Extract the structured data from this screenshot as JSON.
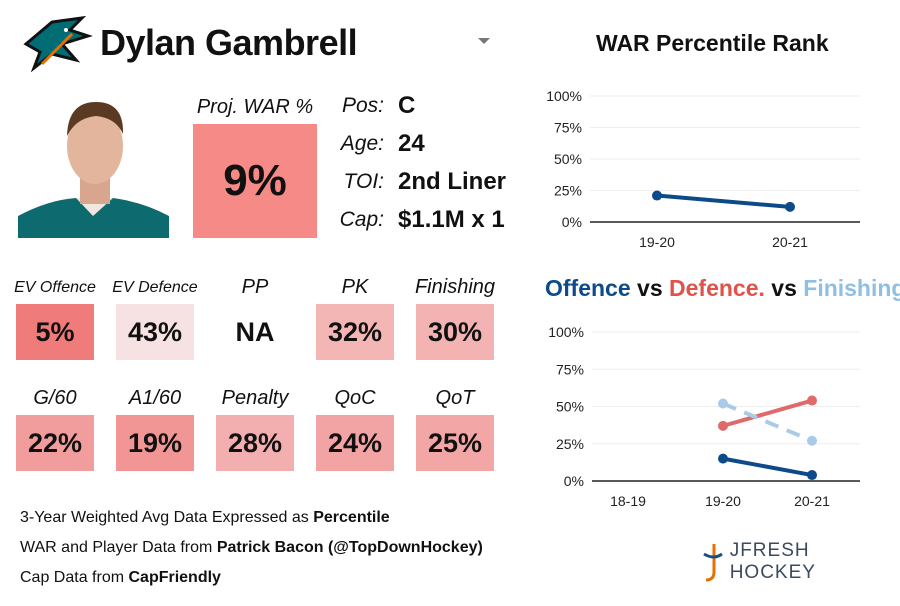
{
  "player": {
    "name": "Dylan Gambrell",
    "proj_war_label": "Proj. WAR %",
    "proj_war": "9%",
    "proj_war_color": "#f58a87"
  },
  "info": [
    {
      "k": "Pos:",
      "v": "C"
    },
    {
      "k": "Age:",
      "v": "24"
    },
    {
      "k": "TOI:",
      "v": "2nd Liner"
    },
    {
      "k": "Cap:",
      "v": "$1.1M x 1"
    }
  ],
  "tiles": [
    {
      "label": "EV Offence",
      "value": "5%",
      "color": "#f07b7b"
    },
    {
      "label": "EV Defence",
      "value": "43%",
      "color": "#f6e2e2"
    },
    {
      "label": "PP",
      "value": "NA",
      "color": "#ffffff"
    },
    {
      "label": "PK",
      "value": "32%",
      "color": "#f4b5b5"
    },
    {
      "label": "Finishing",
      "value": "30%",
      "color": "#f4b3b3"
    },
    {
      "label": "G/60",
      "value": "22%",
      "color": "#f29d9d"
    },
    {
      "label": "A1/60",
      "value": "19%",
      "color": "#f19595"
    },
    {
      "label": "Penalty",
      "value": "28%",
      "color": "#f3afaf"
    },
    {
      "label": "QoC",
      "value": "24%",
      "color": "#f2a3a3"
    },
    {
      "label": "QoT",
      "value": "25%",
      "color": "#f3a6a6"
    }
  ],
  "notes": [
    {
      "pre": "3-Year Weighted Avg Data Expressed as ",
      "bold": "Percentile"
    },
    {
      "pre": "WAR and Player Data from ",
      "bold": "Patrick Bacon (@TopDownHockey)"
    },
    {
      "pre": "Cap Data from ",
      "bold": "CapFriendly"
    }
  ],
  "brand": "JFRESH HOCKEY",
  "chart_data": [
    {
      "type": "line",
      "title": "WAR Percentile Rank",
      "categories": [
        "19-20",
        "20-21"
      ],
      "ylim": [
        0,
        100
      ],
      "yticks": [
        "0%",
        "25%",
        "50%",
        "75%",
        "100%"
      ],
      "grid": true,
      "series": [
        {
          "values": [
            21,
            12
          ],
          "color": "#0d4a8a",
          "dash": false
        }
      ]
    },
    {
      "type": "line",
      "title_parts": [
        {
          "text": "Offence",
          "color": "#0d4a8a"
        },
        {
          "text": " vs ",
          "color": "#111111"
        },
        {
          "text": "Defence.",
          "color": "#e0524a"
        },
        {
          "text": " vs ",
          "color": "#111111"
        },
        {
          "text": "Finishing",
          "color": "#8fbfe3"
        }
      ],
      "categories": [
        "18-19",
        "19-20",
        "20-21"
      ],
      "ylim": [
        0,
        100
      ],
      "yticks": [
        "0%",
        "25%",
        "50%",
        "75%",
        "100%"
      ],
      "grid": true,
      "series": [
        {
          "name": "Offence",
          "values": [
            null,
            15,
            4
          ],
          "color": "#0d4a8a",
          "dash": false
        },
        {
          "name": "Defence.",
          "values": [
            null,
            37,
            54
          ],
          "color": "#e06a6a",
          "dash": false
        },
        {
          "name": "Finishing",
          "values": [
            null,
            52,
            27
          ],
          "color": "#a9cbe8",
          "dash": true
        }
      ]
    }
  ]
}
